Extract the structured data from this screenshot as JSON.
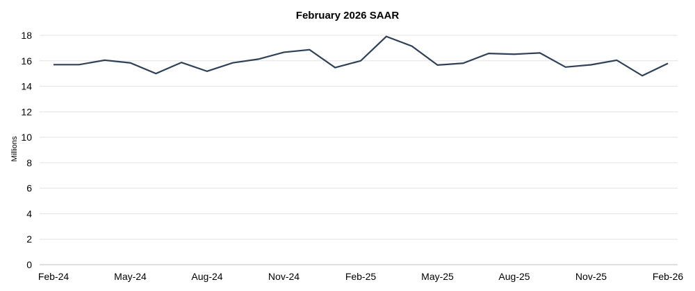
{
  "chart_data": {
    "type": "line",
    "title": "February 2026 SAAR",
    "xlabel": "",
    "ylabel": "Millions",
    "ylim": [
      0,
      18
    ],
    "yticks": [
      0,
      2,
      4,
      6,
      8,
      10,
      12,
      14,
      16,
      18
    ],
    "grid": true,
    "line_color": "#2e4057",
    "x": [
      "Feb-24",
      "Mar-24",
      "Apr-24",
      "May-24",
      "Jun-24",
      "Jul-24",
      "Aug-24",
      "Sep-24",
      "Oct-24",
      "Nov-24",
      "Dec-24",
      "Jan-25",
      "Feb-25",
      "Mar-25",
      "Apr-25",
      "May-25",
      "Jun-25",
      "Jul-25",
      "Aug-25",
      "Sep-25",
      "Oct-25",
      "Nov-25",
      "Dec-25",
      "Jan-26",
      "Feb-26"
    ],
    "xtick_labels": [
      "Feb-24",
      "May-24",
      "Aug-24",
      "Nov-24",
      "Feb-25",
      "May-25",
      "Aug-25",
      "Nov-25",
      "Feb-26"
    ],
    "series": [
      {
        "values": [
          15.7,
          15.7,
          16.05,
          15.84,
          15.0,
          15.87,
          15.18,
          15.84,
          16.13,
          16.67,
          16.87,
          15.47,
          16.0,
          17.91,
          17.15,
          15.67,
          15.81,
          16.58,
          16.52,
          16.62,
          15.51,
          15.69,
          16.05,
          14.83,
          15.8
        ]
      }
    ]
  }
}
